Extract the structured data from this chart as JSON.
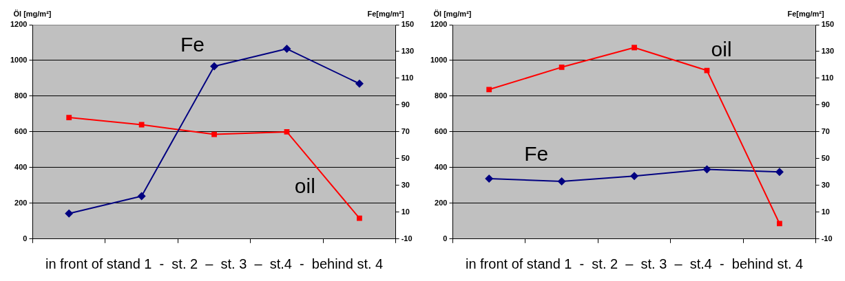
{
  "chart_data": [
    {
      "type": "line",
      "xlabel": "in front of stand 1  -  st. 2  –  st. 3  –  st.4  -  behind st. 4",
      "ylabel": "Öl [mg/m²]",
      "y2label": "Fe[mg/m²]",
      "categories": [
        null,
        null,
        null,
        null,
        null
      ],
      "series": [
        {
          "name": "Fe",
          "color": "#000080",
          "axis": "y2",
          "marker": "diamond",
          "values": [
            9,
            22,
            119,
            132,
            106
          ]
        },
        {
          "name": "oil",
          "color": "#ff0000",
          "axis": "y",
          "marker": "square",
          "values": [
            680,
            640,
            586,
            600,
            116
          ]
        }
      ],
      "ylim": [
        0,
        1200
      ],
      "yticks": [
        0,
        200,
        400,
        600,
        800,
        1000,
        1200
      ],
      "y2lim": [
        -10,
        150
      ],
      "y2ticks": [
        -10,
        10,
        30,
        50,
        70,
        90,
        110,
        130,
        150
      ],
      "grid": "y",
      "legend": false
    },
    {
      "type": "line",
      "xlabel": "in front of stand 1  -  st. 2  –  st. 3  –  st.4  -  behind st. 4",
      "ylabel": "Öl [mg/m²]",
      "y2label": "Fe[mg/m²]",
      "categories": [
        null,
        null,
        null,
        null,
        null
      ],
      "series": [
        {
          "name": "oil",
          "color": "#ff0000",
          "axis": "y",
          "marker": "square",
          "values": [
            837,
            962,
            1072,
            944,
            86
          ]
        },
        {
          "name": "Fe",
          "color": "#000080",
          "axis": "y2",
          "marker": "diamond",
          "values": [
            35,
            33,
            37,
            42,
            40
          ]
        }
      ],
      "ylim": [
        0,
        1200
      ],
      "yticks": [
        0,
        200,
        400,
        600,
        800,
        1000,
        1200
      ],
      "y2lim": [
        -10,
        150
      ],
      "y2ticks": [
        -10,
        10,
        30,
        50,
        70,
        90,
        110,
        130,
        150
      ],
      "grid": "y",
      "legend": false
    }
  ]
}
